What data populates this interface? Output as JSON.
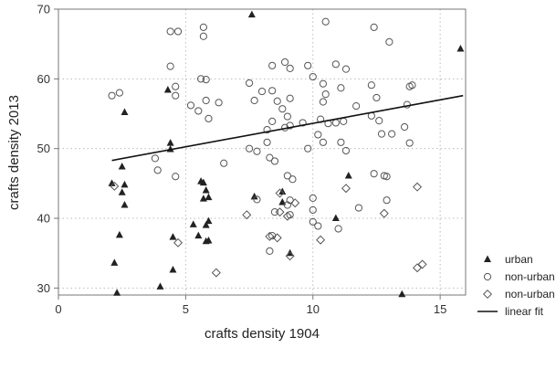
{
  "chart_data": {
    "type": "scatter",
    "title": "",
    "xlabel": "crafts density 1904",
    "ylabel": "crafts density 2013",
    "xlim": [
      0,
      16
    ],
    "ylim": [
      29,
      70
    ],
    "xticks": [
      0,
      5,
      10,
      15
    ],
    "yticks": [
      30,
      40,
      50,
      60,
      70
    ],
    "grid": true,
    "legend_position": "right-bottom",
    "colors": {
      "marker": "#555555",
      "fit_line": "#111111",
      "grid": "#bbbbbb",
      "frame": "#777777"
    },
    "series": [
      {
        "name": "urban",
        "marker": "triangle",
        "points": [
          [
            7.6,
            69.2
          ],
          [
            15.8,
            64.3
          ],
          [
            4.3,
            58.4
          ],
          [
            2.6,
            55.2
          ],
          [
            4.4,
            50.8
          ],
          [
            4.4,
            49.9
          ],
          [
            2.1,
            45.0
          ],
          [
            2.5,
            47.4
          ],
          [
            2.6,
            44.8
          ],
          [
            2.5,
            43.7
          ],
          [
            2.6,
            41.9
          ],
          [
            5.6,
            45.3
          ],
          [
            5.7,
            45.1
          ],
          [
            5.8,
            44.0
          ],
          [
            5.7,
            42.8
          ],
          [
            5.9,
            43.0
          ],
          [
            7.7,
            43.1
          ],
          [
            8.8,
            43.8
          ],
          [
            8.8,
            42.3
          ],
          [
            11.4,
            46.1
          ],
          [
            10.9,
            40.0
          ],
          [
            5.3,
            39.1
          ],
          [
            5.8,
            39.0
          ],
          [
            5.9,
            39.6
          ],
          [
            5.5,
            37.5
          ],
          [
            5.9,
            36.8
          ],
          [
            5.8,
            36.7
          ],
          [
            2.4,
            37.6
          ],
          [
            4.5,
            37.3
          ],
          [
            9.1,
            35.0
          ],
          [
            2.2,
            33.6
          ],
          [
            4.5,
            32.6
          ],
          [
            4.0,
            30.2
          ],
          [
            2.3,
            29.3
          ],
          [
            13.5,
            29.1
          ]
        ]
      },
      {
        "name": "non-urban",
        "marker": "circle",
        "points": [
          [
            10.5,
            68.2
          ],
          [
            4.4,
            66.8
          ],
          [
            4.7,
            66.8
          ],
          [
            5.7,
            67.4
          ],
          [
            5.7,
            66.1
          ],
          [
            12.4,
            67.4
          ],
          [
            13.0,
            65.3
          ],
          [
            4.4,
            61.8
          ],
          [
            8.9,
            62.4
          ],
          [
            10.9,
            62.1
          ],
          [
            9.8,
            61.9
          ],
          [
            11.3,
            61.4
          ],
          [
            8.4,
            61.9
          ],
          [
            9.1,
            61.5
          ],
          [
            2.1,
            57.6
          ],
          [
            2.4,
            58.0
          ],
          [
            4.6,
            58.9
          ],
          [
            5.6,
            60.0
          ],
          [
            5.8,
            59.9
          ],
          [
            7.5,
            59.4
          ],
          [
            8.0,
            58.2
          ],
          [
            8.4,
            58.3
          ],
          [
            10.0,
            60.3
          ],
          [
            10.4,
            59.3
          ],
          [
            11.1,
            58.7
          ],
          [
            12.3,
            59.1
          ],
          [
            13.9,
            59.1
          ],
          [
            13.8,
            58.9
          ],
          [
            4.6,
            57.6
          ],
          [
            5.8,
            56.9
          ],
          [
            7.7,
            56.9
          ],
          [
            8.6,
            56.8
          ],
          [
            9.1,
            57.2
          ],
          [
            10.5,
            57.8
          ],
          [
            10.4,
            56.7
          ],
          [
            11.7,
            56.1
          ],
          [
            12.5,
            57.3
          ],
          [
            13.7,
            56.3
          ],
          [
            5.2,
            56.2
          ],
          [
            5.5,
            55.4
          ],
          [
            6.3,
            56.6
          ],
          [
            8.8,
            55.7
          ],
          [
            9.0,
            54.6
          ],
          [
            10.3,
            54.2
          ],
          [
            10.6,
            53.6
          ],
          [
            11.2,
            53.9
          ],
          [
            12.3,
            54.7
          ],
          [
            12.6,
            54.0
          ],
          [
            8.4,
            53.9
          ],
          [
            8.9,
            53.0
          ],
          [
            9.1,
            53.3
          ],
          [
            9.6,
            53.7
          ],
          [
            10.9,
            53.7
          ],
          [
            5.9,
            54.3
          ],
          [
            8.2,
            52.7
          ],
          [
            10.2,
            52.0
          ],
          [
            12.7,
            52.1
          ],
          [
            13.1,
            52.1
          ],
          [
            13.6,
            53.1
          ],
          [
            3.8,
            48.6
          ],
          [
            8.2,
            50.9
          ],
          [
            9.8,
            50.0
          ],
          [
            10.4,
            50.9
          ],
          [
            11.1,
            50.9
          ],
          [
            11.3,
            49.7
          ],
          [
            13.8,
            50.8
          ],
          [
            3.9,
            46.9
          ],
          [
            6.5,
            47.9
          ],
          [
            7.5,
            50.0
          ],
          [
            7.8,
            49.6
          ],
          [
            8.3,
            48.7
          ],
          [
            8.5,
            48.2
          ],
          [
            4.6,
            46.0
          ],
          [
            9.0,
            46.1
          ],
          [
            9.2,
            45.6
          ],
          [
            12.4,
            46.4
          ],
          [
            12.8,
            46.1
          ],
          [
            12.9,
            46.0
          ],
          [
            7.8,
            42.7
          ],
          [
            9.1,
            42.6
          ],
          [
            10.0,
            42.9
          ],
          [
            12.9,
            42.6
          ],
          [
            8.5,
            40.9
          ],
          [
            9.0,
            41.9
          ],
          [
            9.1,
            40.5
          ],
          [
            10.0,
            41.2
          ],
          [
            11.8,
            41.5
          ],
          [
            10.0,
            39.5
          ],
          [
            10.2,
            38.9
          ],
          [
            11.0,
            38.5
          ],
          [
            8.4,
            37.5
          ],
          [
            8.3,
            35.3
          ]
        ]
      },
      {
        "name": "non-urban",
        "marker": "diamond",
        "points": [
          [
            2.2,
            44.6
          ],
          [
            7.4,
            40.5
          ],
          [
            8.7,
            40.9
          ],
          [
            8.7,
            43.6
          ],
          [
            9.3,
            42.2
          ],
          [
            11.3,
            44.3
          ],
          [
            14.1,
            44.5
          ],
          [
            12.8,
            40.7
          ],
          [
            9.0,
            40.3
          ],
          [
            8.3,
            37.4
          ],
          [
            8.6,
            37.2
          ],
          [
            9.1,
            34.6
          ],
          [
            10.3,
            36.9
          ],
          [
            4.7,
            36.5
          ],
          [
            6.2,
            32.2
          ],
          [
            14.1,
            32.9
          ],
          [
            14.3,
            33.4
          ]
        ]
      }
    ],
    "fit_line": {
      "name": "linear fit",
      "from": [
        2.1,
        48.3
      ],
      "to": [
        15.9,
        57.6
      ]
    }
  }
}
